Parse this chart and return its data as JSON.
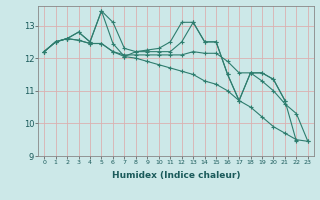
{
  "xlabel": "Humidex (Indice chaleur)",
  "ylabel": "",
  "background_color": "#cce8e8",
  "grid_color": "#dbb0b0",
  "line_color": "#2e7d6e",
  "xlim": [
    -0.5,
    23.5
  ],
  "ylim": [
    9.0,
    13.6
  ],
  "yticks": [
    9,
    10,
    11,
    12,
    13
  ],
  "xticks": [
    0,
    1,
    2,
    3,
    4,
    5,
    6,
    7,
    8,
    9,
    10,
    11,
    12,
    13,
    14,
    15,
    16,
    17,
    18,
    19,
    20,
    21,
    22,
    23
  ],
  "series": [
    [
      12.2,
      12.5,
      12.6,
      12.8,
      12.5,
      13.45,
      12.45,
      12.05,
      12.2,
      12.2,
      12.2,
      12.2,
      12.5,
      13.1,
      12.5,
      12.5,
      11.5,
      10.7,
      11.55,
      11.55,
      11.35,
      10.7,
      9.45,
      null
    ],
    [
      12.2,
      12.5,
      12.6,
      12.55,
      12.45,
      12.45,
      12.2,
      12.1,
      12.1,
      12.1,
      12.1,
      12.1,
      12.1,
      12.2,
      12.15,
      12.15,
      11.9,
      11.55,
      11.55,
      11.3,
      11.0,
      10.6,
      10.3,
      9.45
    ],
    [
      12.2,
      12.5,
      12.6,
      12.8,
      12.5,
      13.45,
      13.1,
      12.3,
      12.2,
      12.25,
      12.3,
      12.5,
      13.1,
      13.1,
      12.5,
      12.5,
      11.5,
      10.7,
      11.55,
      11.55,
      11.35,
      10.7,
      null,
      null
    ],
    [
      12.2,
      12.5,
      12.6,
      12.55,
      12.45,
      12.45,
      12.2,
      12.05,
      12.0,
      11.9,
      11.8,
      11.7,
      11.6,
      11.5,
      11.3,
      11.2,
      11.0,
      10.7,
      10.5,
      10.2,
      9.9,
      9.7,
      9.5,
      9.45
    ]
  ]
}
